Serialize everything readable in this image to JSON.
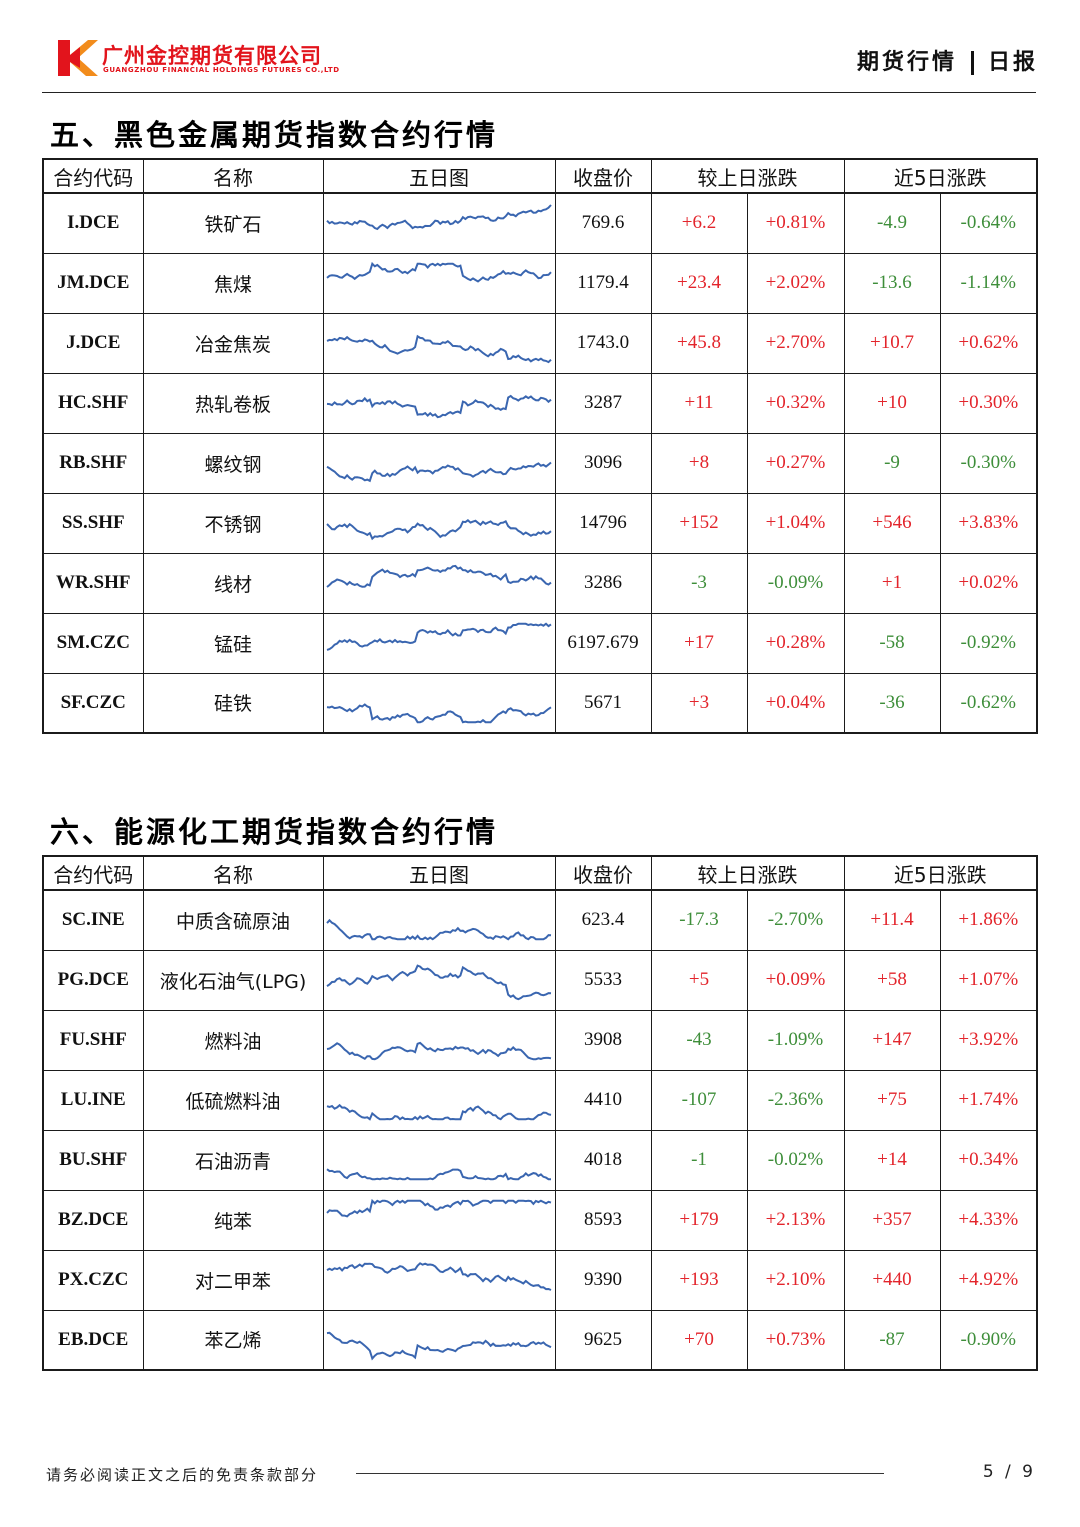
{
  "header": {
    "company_cn": "广州金控期货有限公司",
    "company_en": "GUANGZHOU FINANCIAL HOLDINGS FUTURES CO.,LTD",
    "report_type": "期货行情",
    "report_freq": "日报",
    "colors": {
      "brand": "#e2141c",
      "up": "#e3242b",
      "down": "#3e8e3a",
      "sparkline": "#3a66b0"
    }
  },
  "columns": {
    "code": "合约代码",
    "name": "名称",
    "chart": "五日图",
    "close": "收盘价",
    "day_change": "较上日涨跌",
    "five_day_change": "近5日涨跌"
  },
  "sections": [
    {
      "title": "五、黑色金属期货指数合约行情",
      "rows": [
        {
          "code": "I.DCE",
          "name": "铁矿石",
          "close": "769.6",
          "d_chg": "+6.2",
          "d_pct": "+0.81%",
          "w_chg": "-4.9",
          "w_pct": "-0.64%"
        },
        {
          "code": "JM.DCE",
          "name": "焦煤",
          "close": "1179.4",
          "d_chg": "+23.4",
          "d_pct": "+2.02%",
          "w_chg": "-13.6",
          "w_pct": "-1.14%"
        },
        {
          "code": "J.DCE",
          "name": "冶金焦炭",
          "close": "1743.0",
          "d_chg": "+45.8",
          "d_pct": "+2.70%",
          "w_chg": "+10.7",
          "w_pct": "+0.62%"
        },
        {
          "code": "HC.SHF",
          "name": "热轧卷板",
          "close": "3287",
          "d_chg": "+11",
          "d_pct": "+0.32%",
          "w_chg": "+10",
          "w_pct": "+0.30%"
        },
        {
          "code": "RB.SHF",
          "name": "螺纹钢",
          "close": "3096",
          "d_chg": "+8",
          "d_pct": "+0.27%",
          "w_chg": "-9",
          "w_pct": "-0.30%"
        },
        {
          "code": "SS.SHF",
          "name": "不锈钢",
          "close": "14796",
          "d_chg": "+152",
          "d_pct": "+1.04%",
          "w_chg": "+546",
          "w_pct": "+3.83%"
        },
        {
          "code": "WR.SHF",
          "name": "线材",
          "close": "3286",
          "d_chg": "-3",
          "d_pct": "-0.09%",
          "w_chg": "+1",
          "w_pct": "+0.02%"
        },
        {
          "code": "SM.CZC",
          "name": "锰硅",
          "close": "6197.679",
          "d_chg": "+17",
          "d_pct": "+0.28%",
          "w_chg": "-58",
          "w_pct": "-0.92%"
        },
        {
          "code": "SF.CZC",
          "name": "硅铁",
          "close": "5671",
          "d_chg": "+3",
          "d_pct": "+0.04%",
          "w_chg": "-36",
          "w_pct": "-0.62%"
        }
      ]
    },
    {
      "title": "六、能源化工期货指数合约行情",
      "rows": [
        {
          "code": "SC.INE",
          "name": "中质含硫原油",
          "close": "623.4",
          "d_chg": "-17.3",
          "d_pct": "-2.70%",
          "w_chg": "+11.4",
          "w_pct": "+1.86%"
        },
        {
          "code": "PG.DCE",
          "name": "液化石油气(LPG)",
          "close": "5533",
          "d_chg": "+5",
          "d_pct": "+0.09%",
          "w_chg": "+58",
          "w_pct": "+1.07%"
        },
        {
          "code": "FU.SHF",
          "name": "燃料油",
          "close": "3908",
          "d_chg": "-43",
          "d_pct": "-1.09%",
          "w_chg": "+147",
          "w_pct": "+3.92%"
        },
        {
          "code": "LU.INE",
          "name": "低硫燃料油",
          "close": "4410",
          "d_chg": "-107",
          "d_pct": "-2.36%",
          "w_chg": "+75",
          "w_pct": "+1.74%"
        },
        {
          "code": "BU.SHF",
          "name": "石油沥青",
          "close": "4018",
          "d_chg": "-1",
          "d_pct": "-0.02%",
          "w_chg": "+14",
          "w_pct": "+0.34%"
        },
        {
          "code": "BZ.DCE",
          "name": "纯苯",
          "close": "8593",
          "d_chg": "+179",
          "d_pct": "+2.13%",
          "w_chg": "+357",
          "w_pct": "+4.33%"
        },
        {
          "code": "PX.CZC",
          "name": "对二甲苯",
          "close": "9390",
          "d_chg": "+193",
          "d_pct": "+2.10%",
          "w_chg": "+440",
          "w_pct": "+4.92%"
        },
        {
          "code": "EB.DCE",
          "name": "苯乙烯",
          "close": "9625",
          "d_chg": "+70",
          "d_pct": "+0.73%",
          "w_chg": "-87",
          "w_pct": "-0.90%"
        }
      ]
    }
  ],
  "footer": {
    "disclaimer": "请务必阅读正文之后的免责条款部分",
    "page": "5 / 9"
  }
}
